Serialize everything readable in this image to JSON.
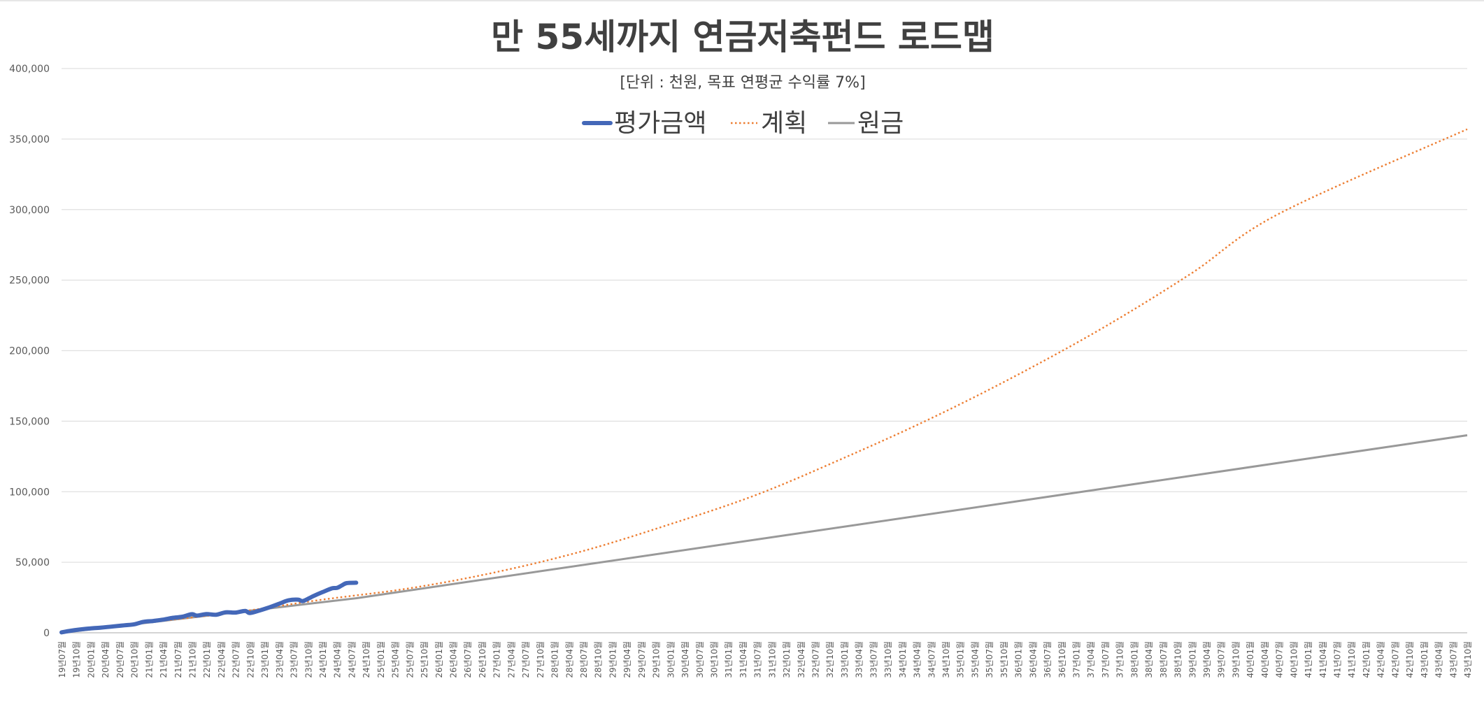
{
  "chart_data": {
    "type": "line",
    "title": "만 55세까지 연금저축펀드 로드맵",
    "subtitle": "[단위 : 천원, 목표 연평균 수익률 7%]",
    "xlabel": "",
    "ylabel": "",
    "ylim": [
      0,
      400000
    ],
    "yticks": [
      0,
      50000,
      100000,
      150000,
      200000,
      250000,
      300000,
      350000,
      400000
    ],
    "ytick_labels": [
      "0",
      "50,000",
      "100,000",
      "150,000",
      "200,000",
      "250,000",
      "300,000",
      "350,000",
      "400,000"
    ],
    "grid": true,
    "legend_position": "top-center",
    "x_start": "2019-07",
    "x_end": "2043-10",
    "x_label_step_months": 3,
    "x_label_format": "YY년MM월",
    "colors": {
      "평가금액": "#4468b8",
      "계획": "#ed7d31",
      "원금": "#999999",
      "grid": "#e0e0e0",
      "text": "#595959",
      "title": "#404040"
    },
    "series": [
      {
        "name": "평가금액",
        "style": "solid-thick",
        "points": [
          [
            "2019-07",
            300
          ],
          [
            "2019-09",
            1500
          ],
          [
            "2019-12",
            2800
          ],
          [
            "2020-03",
            3600
          ],
          [
            "2020-06",
            4600
          ],
          [
            "2020-08",
            5300
          ],
          [
            "2020-10",
            6000
          ],
          [
            "2020-12",
            7800
          ],
          [
            "2021-02",
            8400
          ],
          [
            "2021-04",
            9300
          ],
          [
            "2021-06",
            10600
          ],
          [
            "2021-08",
            11400
          ],
          [
            "2021-10",
            13200
          ],
          [
            "2021-11",
            12200
          ],
          [
            "2022-01",
            13300
          ],
          [
            "2022-03",
            12800
          ],
          [
            "2022-05",
            14500
          ],
          [
            "2022-07",
            14300
          ],
          [
            "2022-09",
            15500
          ],
          [
            "2022-10",
            14000
          ],
          [
            "2022-12",
            15800
          ],
          [
            "2023-02",
            18000
          ],
          [
            "2023-04",
            20500
          ],
          [
            "2023-06",
            23000
          ],
          [
            "2023-08",
            23500
          ],
          [
            "2023-09",
            22500
          ],
          [
            "2023-11",
            25800
          ],
          [
            "2024-01",
            28800
          ],
          [
            "2024-03",
            31500
          ],
          [
            "2024-04",
            31800
          ],
          [
            "2024-05",
            33500
          ],
          [
            "2024-06",
            35200
          ],
          [
            "2024-08",
            35500
          ]
        ]
      },
      {
        "name": "계획",
        "style": "dotted",
        "points": [
          [
            "2019-07",
            0
          ],
          [
            "2021-01",
            7300
          ],
          [
            "2022-07",
            14500
          ],
          [
            "2024-01",
            23500
          ],
          [
            "2025-07",
            31500
          ],
          [
            "2027-01",
            43000
          ],
          [
            "2028-07",
            58000
          ],
          [
            "2030-01",
            77000
          ],
          [
            "2031-07",
            98000
          ],
          [
            "2033-01",
            124000
          ],
          [
            "2034-07",
            152000
          ],
          [
            "2036-01",
            183000
          ],
          [
            "2037-07",
            217000
          ],
          [
            "2039-01",
            255000
          ],
          [
            "2040-07",
            297000
          ],
          [
            "2043-10",
            357000
          ]
        ]
      },
      {
        "name": "원금",
        "style": "solid",
        "points": [
          [
            "2019-07",
            0
          ],
          [
            "2024-08",
            24500
          ],
          [
            "2043-10",
            140000
          ]
        ]
      }
    ]
  }
}
